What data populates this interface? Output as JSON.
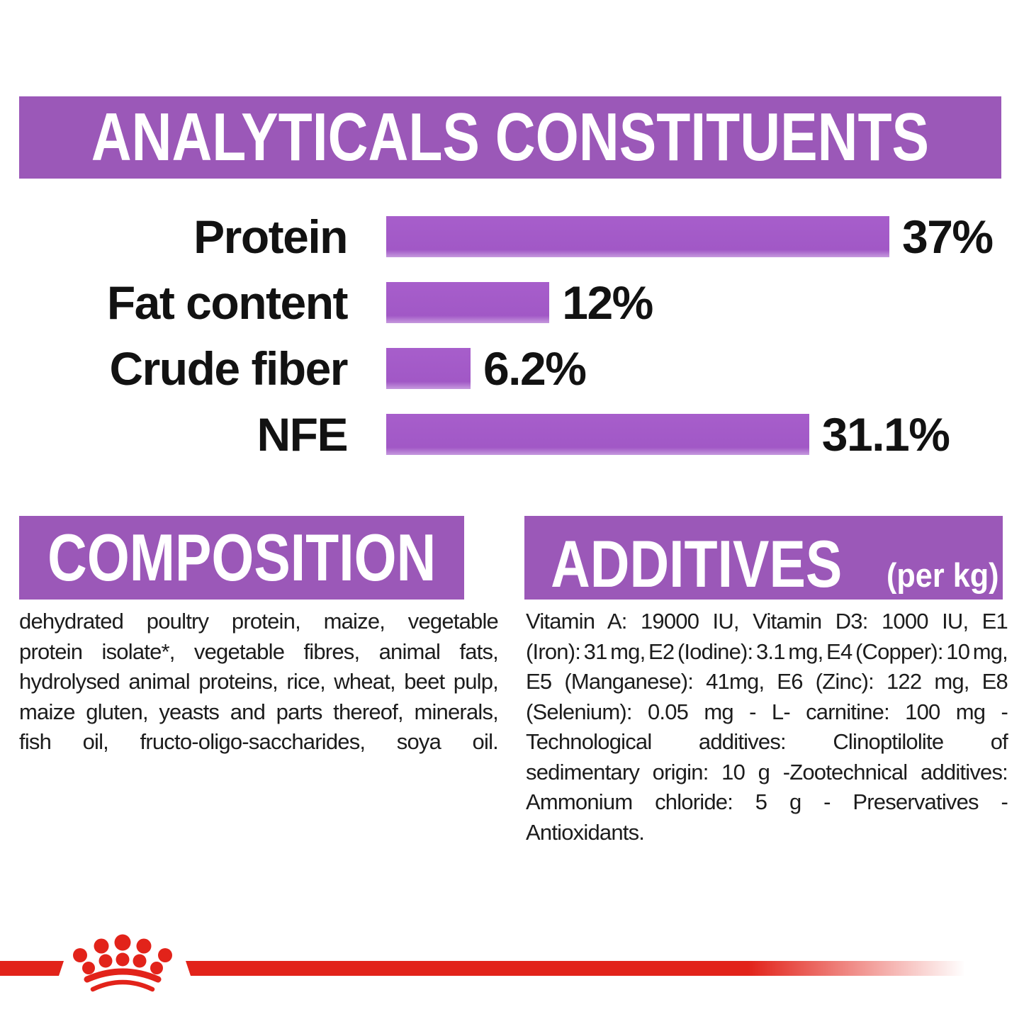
{
  "header": {
    "title": "ANALYTICALS CONSTITUENTS"
  },
  "chart_data": {
    "type": "bar",
    "orientation": "horizontal",
    "title": "ANALYTICALS CONSTITUENTS",
    "categories": [
      "Protein",
      "Fat content",
      "Crude fiber",
      "NFE"
    ],
    "values": [
      37,
      12,
      6.2,
      31.1
    ],
    "value_labels": [
      "37%",
      "12%",
      "6.2%",
      "31.1%"
    ],
    "xlabel": "",
    "ylabel": "",
    "xlim": [
      0,
      37
    ],
    "grid": false,
    "legend": false,
    "bar_color": "#a158c6"
  },
  "composition": {
    "title": "COMPOSITION",
    "lines": [
      "dehydrated poultry protein, maize, vegetable",
      "protein isolate*, vegetable fibres, animal fats,",
      "hydrolysed animal proteins, rice, wheat, beet pulp,",
      "maize gluten, yeasts and parts thereof, minerals,",
      "fish oil, fructo-oligo-saccharides, soya oil."
    ],
    "justify_last_line": true
  },
  "additives": {
    "title": "ADDITIVES",
    "unit": "(per kg)",
    "lines": [
      "Vitamin A: 19000 IU, Vitamin D3: 1000 IU, E1",
      "(Iron): 31 mg, E2 (Iodine): 3.1 mg, E4 (Copper): 10 mg,",
      "E5 (Manganese): 41mg, E6 (Zinc): 122 mg, E8",
      "(Selenium): 0.05 mg - L- carnitine: 100 mg -",
      "Technological additives: Clinoptilolite of",
      "sedimentary origin: 10 g -Zootechnical additives:",
      "Ammonium chloride: 5 g - Preservatives -",
      "Antioxidants."
    ],
    "justify_last_line": false
  },
  "footer": {
    "logo": "royal-canin-crown"
  },
  "colors": {
    "banner_purple": "#9b58b8",
    "bar_purple": "#a158c6",
    "brand_red": "#e2231a",
    "text_dark": "#1c1c1c",
    "background": "#ffffff"
  }
}
